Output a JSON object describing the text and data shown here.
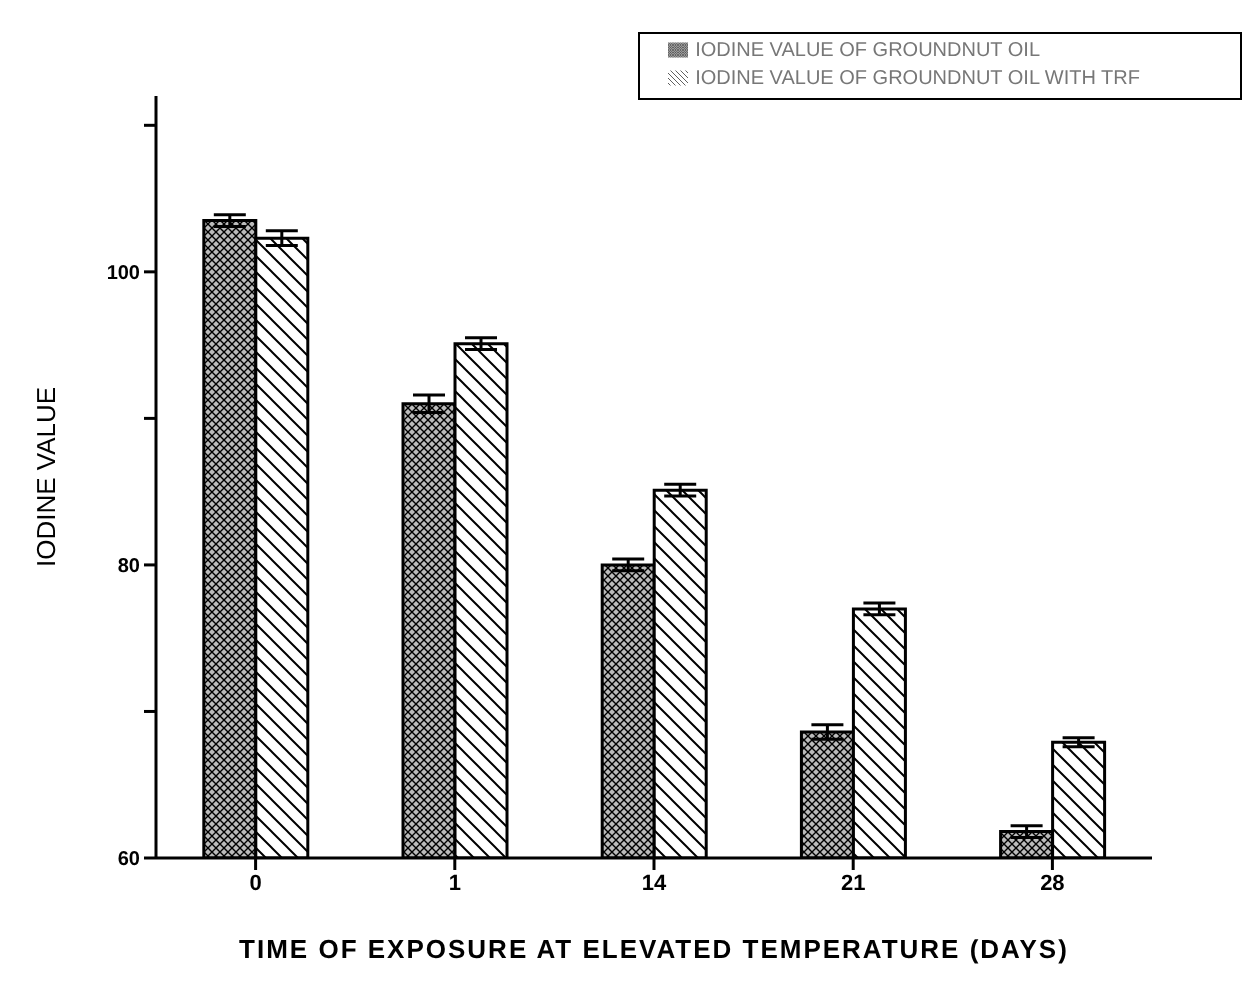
{
  "chart_data": {
    "type": "bar",
    "xlabel": "TIME OF EXPOSURE AT ELEVATED TEMPERATURE (DAYS)",
    "ylabel": "IODINE VALUE",
    "categories": [
      "0",
      "1",
      "14",
      "21",
      "28"
    ],
    "series": [
      {
        "name": "IODINE VALUE OF GROUNDNUT OIL",
        "color": "#000000",
        "values": [
          103.5,
          91.0,
          80.0,
          68.6,
          61.8
        ],
        "errors": [
          0.4,
          0.6,
          0.4,
          0.5,
          0.4
        ]
      },
      {
        "name": "IODINE VALUE OF GROUNDNUT OIL WITH TRF",
        "color": "#000000",
        "values": [
          102.3,
          95.1,
          85.1,
          77.0,
          67.9
        ],
        "errors": [
          0.5,
          0.4,
          0.4,
          0.4,
          0.3
        ]
      }
    ],
    "ylim": [
      60,
      112
    ],
    "yticks": [
      60,
      {
        "value": 70,
        "label": null
      },
      80,
      {
        "value": 90,
        "label": null
      },
      100,
      {
        "value": 110,
        "label": null
      }
    ],
    "grid": false,
    "legend": "top right"
  }
}
